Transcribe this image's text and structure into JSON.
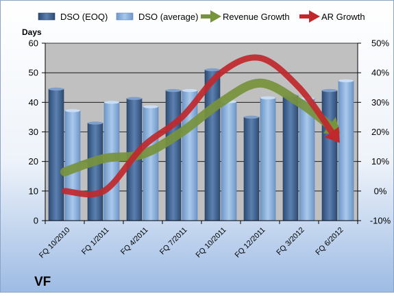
{
  "company": "VF",
  "chart_data": {
    "type": "bar",
    "categories": [
      "FQ 10/2010",
      "FQ 1/2011",
      "FQ 4/2011",
      "FQ 7/2011",
      "FQ 10/2011",
      "FQ 12/2011",
      "FQ 3/2012",
      "FQ 6/2012"
    ],
    "series": [
      {
        "name": "DSO (EOQ)",
        "axis": "left",
        "color": "#4A6E9C",
        "values": [
          44.5,
          33,
          41.3,
          44,
          51,
          35,
          42.3,
          44
        ]
      },
      {
        "name": "DSO (average)",
        "axis": "left",
        "color": "#8DB4E2",
        "values": [
          37.2,
          40,
          38.5,
          44,
          40.2,
          41.5,
          41.3,
          47.3
        ]
      }
    ],
    "lines": [
      {
        "name": "Revenue Growth",
        "axis": "right",
        "color": "#77933C",
        "values": [
          6.5,
          11,
          12.5,
          20,
          30,
          36.5,
          30,
          20
        ]
      },
      {
        "name": "AR Growth",
        "axis": "right",
        "color": "#C0282C",
        "values": [
          0,
          0,
          15,
          25,
          40,
          45,
          35,
          17
        ]
      }
    ],
    "ylabel": "Days",
    "ylim": [
      0,
      60
    ],
    "yticks": [
      "0",
      "10",
      "20",
      "30",
      "40",
      "50",
      "60"
    ],
    "y2lim": [
      -10,
      50
    ],
    "y2ticks": [
      "-10%",
      "0%",
      "10%",
      "20%",
      "30%",
      "40%",
      "50%"
    ],
    "grid": true,
    "legend_position": "top"
  }
}
